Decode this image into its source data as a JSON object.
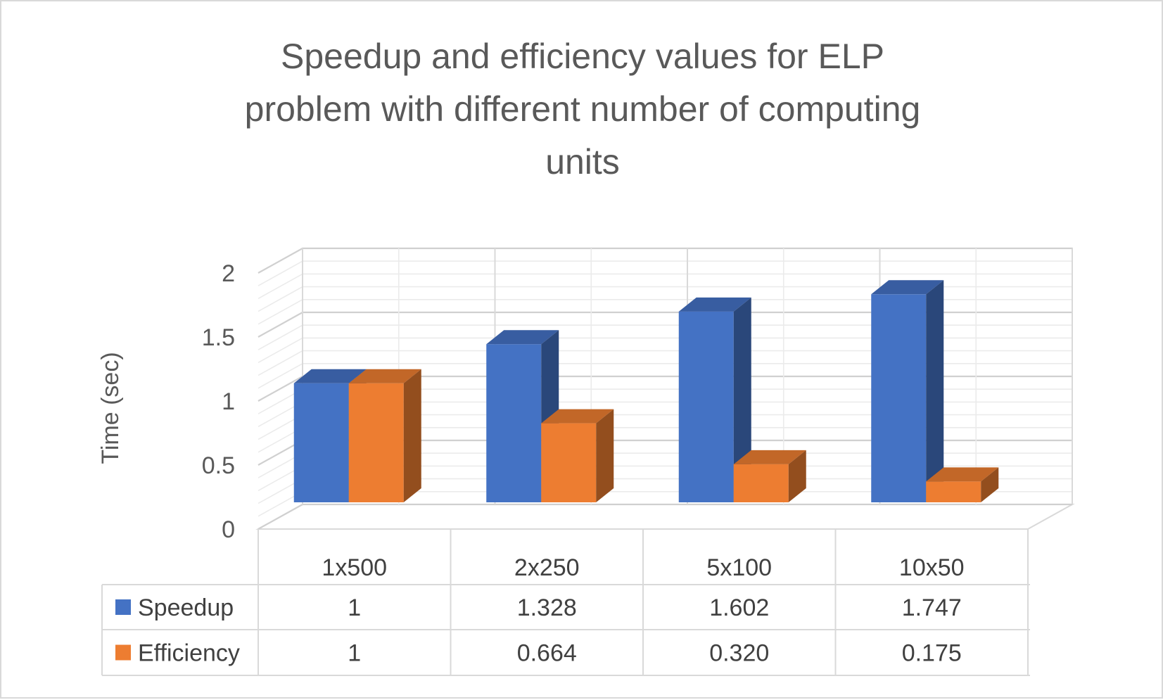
{
  "chart_data": {
    "type": "bar",
    "view": "3d-clustered-column-with-data-table",
    "title": "Speedup and efficiency values for ELP problem with different number of computing units",
    "title_lines": [
      "Speedup and efficiency values for ELP",
      "problem with different number of computing",
      "units"
    ],
    "xlabel": "",
    "ylabel": "Time (sec)",
    "ylim": [
      0,
      2
    ],
    "yticks": [
      0,
      0.5,
      1,
      1.5,
      2
    ],
    "ytick_labels": [
      "0",
      "0.5",
      "1",
      "1.5",
      "2"
    ],
    "categories": [
      "1x500",
      "2x250",
      "5x100",
      "10x50"
    ],
    "series": [
      {
        "name": "Speedup",
        "color": "#4472c4",
        "values": [
          1,
          1.328,
          1.602,
          1.747
        ],
        "labels": [
          "1",
          "1.328",
          "1.602",
          "1.747"
        ]
      },
      {
        "name": "Efficiency",
        "color": "#ed7d31",
        "values": [
          1,
          0.664,
          0.32,
          0.175
        ],
        "labels": [
          "1",
          "0.664",
          "0.320",
          "0.175"
        ]
      }
    ],
    "grid": true,
    "legend": "data-table-left"
  }
}
